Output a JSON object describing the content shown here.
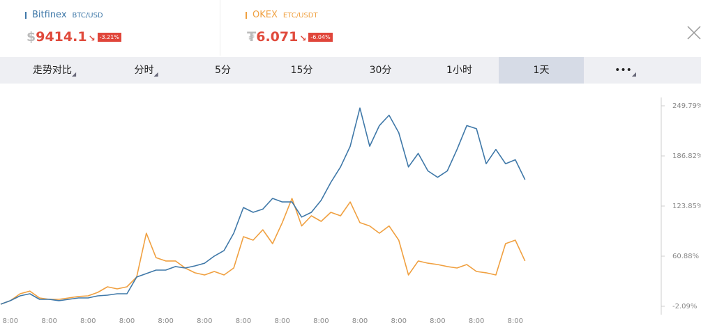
{
  "header": {
    "tickers": [
      {
        "name": "Bitfinex",
        "pair": "BTC/USD",
        "currency": "$",
        "price": "9414.1",
        "change": "-3.21%",
        "color": "#3f78a8"
      },
      {
        "name": "OKEX",
        "pair": "ETC/USDT",
        "currency": "₮",
        "price": "6.071",
        "change": "-6.04%",
        "color": "#f0a040"
      }
    ]
  },
  "tabs": [
    "走势对比",
    "分时",
    "5分",
    "15分",
    "30分",
    "1小时",
    "1天",
    "•••"
  ],
  "active_tab": 6,
  "chart_data": {
    "type": "line",
    "categories": [
      null,
      "8:00",
      null,
      null,
      null,
      "8:00",
      null,
      null,
      null,
      "8:00",
      null,
      null,
      null,
      "8:00",
      null,
      null,
      null,
      "8:00",
      null,
      null,
      null,
      "8:00",
      null,
      null,
      null,
      "8:00",
      null,
      null,
      null,
      "8:00",
      null,
      null,
      null,
      "8:00",
      null,
      null,
      null,
      "8:00",
      null,
      null,
      null,
      "8:00",
      null,
      null,
      null,
      "8:00",
      null,
      null,
      null,
      "8:00",
      null,
      null,
      null,
      "8:00",
      null
    ],
    "series": [
      {
        "name": "Bitfinex",
        "color": "#3f78a8",
        "values": [
          0.5,
          5,
          11,
          13.6,
          6.6,
          6.6,
          5,
          6.6,
          8.4,
          8.4,
          11,
          11.9,
          13.6,
          13.6,
          34.6,
          39,
          43.4,
          43.4,
          47.8,
          46,
          48.6,
          52,
          61,
          68,
          89.7,
          122,
          116,
          120,
          133.5,
          129,
          129,
          110,
          116,
          131,
          153.6,
          173,
          199,
          247,
          199,
          225,
          238,
          216,
          173,
          190,
          168,
          160,
          168,
          195,
          225,
          221,
          177,
          195,
          177,
          182,
          157
        ]
      },
      {
        "name": "OKEX",
        "color": "#f0a040",
        "values": [
          0.5,
          5,
          13.6,
          17,
          8.4,
          6.6,
          6.6,
          8.4,
          10.2,
          11,
          15.4,
          22.4,
          19.8,
          22.4,
          34.6,
          89.7,
          59,
          54.8,
          54.8,
          46,
          40,
          37.3,
          41.6,
          37.3,
          46,
          85.4,
          81,
          94,
          76.6,
          103,
          133.5,
          98.8,
          111.6,
          104.6,
          116,
          111.6,
          129,
          103,
          98.8,
          89.7,
          98.8,
          81,
          37.3,
          54.8,
          52,
          50.4,
          47.8,
          46,
          50.4,
          41.6,
          40,
          37.3,
          76.6,
          81,
          54.8
        ]
      }
    ],
    "ylim": [
      -12.6,
      260.3
    ],
    "yticks": [
      {
        "value": -2.09,
        "label": "-2.09%"
      },
      {
        "value": 60.88,
        "label": "60.88%"
      },
      {
        "value": 123.85,
        "label": "123.85%"
      },
      {
        "value": 186.82,
        "label": "186.82%"
      },
      {
        "value": 249.79,
        "label": "249.79%"
      }
    ]
  }
}
